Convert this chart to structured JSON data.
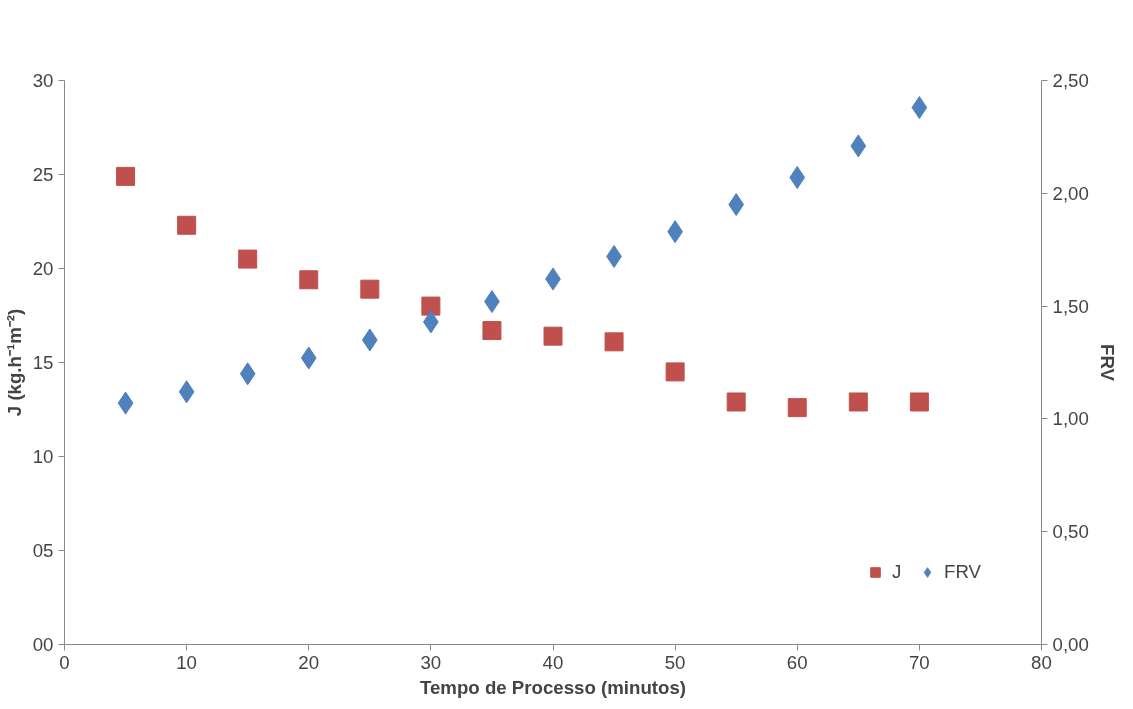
{
  "chart_data": {
    "type": "scatter",
    "xlabel": "Tempo de Processo (minutos)",
    "ylabel": "J (kg.h⁻¹m⁻²)",
    "y2label": "FRV",
    "x": [
      5,
      10,
      15,
      20,
      25,
      30,
      35,
      40,
      45,
      50,
      55,
      60,
      65,
      70
    ],
    "series": [
      {
        "name": "J",
        "color": "#c0504d",
        "marker": "square",
        "values": [
          24.9,
          22.3,
          20.5,
          19.4,
          18.9,
          18.0,
          16.7,
          16.4,
          16.1,
          14.5,
          12.9,
          12.6,
          12.9,
          12.9
        ]
      },
      {
        "name": "FRV",
        "color": "#4f81bd",
        "marker": "diamond",
        "axis": "y2",
        "values": [
          1.07,
          1.12,
          1.2,
          1.27,
          1.35,
          1.43,
          1.52,
          1.62,
          1.72,
          1.83,
          1.95,
          2.07,
          2.21,
          2.38
        ]
      }
    ],
    "xlim": [
      0,
      80
    ],
    "xticks": [
      0,
      10,
      20,
      30,
      40,
      50,
      60,
      70,
      80
    ],
    "ylim": [
      0,
      30
    ],
    "yticks": [
      {
        "value": 0,
        "label": "00"
      },
      {
        "value": 5,
        "label": "05"
      },
      10,
      15,
      20,
      25,
      30
    ],
    "y2lim": [
      0,
      2.5
    ],
    "y2ticks": [
      {
        "value": 0,
        "label": "0,00"
      },
      {
        "value": 0.5,
        "label": "0,50"
      },
      {
        "value": 1,
        "label": "1,00"
      },
      {
        "value": 1.5,
        "label": "1,50"
      },
      {
        "value": 2,
        "label": "2,00"
      },
      {
        "value": 2.5,
        "label": "2,50"
      }
    ],
    "grid": false,
    "legend": "bottom right"
  }
}
